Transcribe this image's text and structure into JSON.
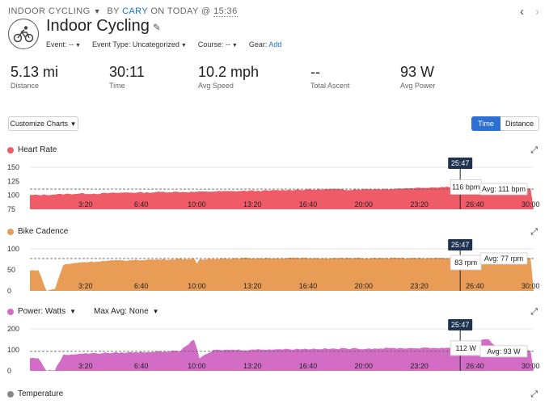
{
  "breadcrumb": {
    "activity_type": "INDOOR CYCLING",
    "by": "BY",
    "author": "CARY",
    "on": "ON TODAY @",
    "time": "15:36"
  },
  "nav": {
    "prev_icon": "chevron-left-icon",
    "next_icon": "chevron-right-icon"
  },
  "activity": {
    "icon": "indoor-cycling-icon",
    "title": "Indoor Cycling",
    "edit_icon": "pencil-icon",
    "event_label": "Event:",
    "event_value": "--",
    "event_type_label": "Event Type:",
    "event_type_value": "Uncategorized",
    "course_label": "Course:",
    "course_value": "--",
    "gear_label": "Gear:",
    "gear_add": "Add"
  },
  "stats": [
    {
      "value": "5.13 mi",
      "label": "Distance"
    },
    {
      "value": "30:11",
      "label": "Time"
    },
    {
      "value": "10.2 mph",
      "label": "Avg Speed"
    },
    {
      "value": "--",
      "label": "Total Ascent"
    },
    {
      "value": "93 W",
      "label": "Avg Power"
    }
  ],
  "controls": {
    "customize_label": "Customize Charts",
    "time_label": "Time",
    "distance_label": "Distance",
    "selected": "Time"
  },
  "x_ticks": [
    "3:20",
    "6:40",
    "10:00",
    "13:20",
    "16:40",
    "20:00",
    "23:20",
    "26:40",
    "30:00"
  ],
  "cursor": {
    "time": "25:47"
  },
  "charts": [
    {
      "key": "heart_rate",
      "label": "Heart Rate",
      "color": "#ef5b66",
      "y_ticks": [
        "150",
        "125",
        "100",
        "75"
      ],
      "ylim": [
        75,
        150
      ],
      "avg_label": "Avg: 111 bpm",
      "cursor_value": "116 bpm"
    },
    {
      "key": "bike_cadence",
      "label": "Bike Cadence",
      "color": "#e89c55",
      "y_ticks": [
        "100",
        "50",
        "0"
      ],
      "ylim": [
        0,
        100
      ],
      "avg_label": "Avg: 77 rpm",
      "cursor_value": "83 rpm"
    },
    {
      "key": "power",
      "label": "Power: Watts",
      "max_avg_label": "Max Avg: None",
      "color": "#d36cc4",
      "y_ticks": [
        "200",
        "100",
        "0"
      ],
      "ylim": [
        0,
        200
      ],
      "avg_label": "Avg: 93 W",
      "cursor_value": "112 W"
    }
  ],
  "temperature": {
    "label": "Temperature",
    "color": "#888888"
  },
  "chart_data": [
    {
      "type": "area",
      "title": "Heart Rate",
      "x": [
        "0:00",
        "1:00",
        "2:00",
        "3:00",
        "4:00",
        "5:00",
        "6:00",
        "7:00",
        "8:00",
        "9:00",
        "10:00",
        "11:00",
        "12:00",
        "13:00",
        "14:00",
        "15:00",
        "16:00",
        "17:00",
        "18:00",
        "19:00",
        "20:00",
        "21:00",
        "22:00",
        "23:00",
        "24:00",
        "25:00",
        "26:00",
        "27:00",
        "28:00",
        "29:00",
        "30:00"
      ],
      "values": [
        100,
        101,
        102,
        103,
        103,
        104,
        105,
        105,
        106,
        106,
        106,
        107,
        107,
        108,
        108,
        109,
        110,
        110,
        111,
        110,
        111,
        111,
        112,
        113,
        114,
        115,
        116,
        117,
        120,
        118,
        112
      ],
      "ylim": [
        75,
        150
      ],
      "average": 111
    },
    {
      "type": "area",
      "title": "Bike Cadence",
      "x": [
        "0:00",
        "0:30",
        "1:00",
        "1:30",
        "2:00",
        "3:00",
        "4:00",
        "5:00",
        "6:00",
        "7:00",
        "8:00",
        "9:00",
        "9:50",
        "10:00",
        "10:10",
        "11:00",
        "12:00",
        "13:00",
        "14:00",
        "15:00",
        "16:00",
        "17:00",
        "18:00",
        "19:00",
        "20:00",
        "21:00",
        "22:00",
        "23:00",
        "24:00",
        "25:00",
        "26:00",
        "27:00",
        "28:00",
        "29:00",
        "29:30",
        "30:00"
      ],
      "values": [
        48,
        50,
        0,
        5,
        62,
        68,
        70,
        72,
        73,
        74,
        75,
        76,
        76,
        64,
        74,
        77,
        77,
        78,
        78,
        78,
        78,
        78,
        78,
        78,
        78,
        78,
        78,
        78,
        78,
        78,
        78,
        80,
        82,
        82,
        78,
        78
      ],
      "ylim": [
        0,
        100
      ],
      "average": 77
    },
    {
      "type": "area",
      "title": "Power: Watts",
      "x": [
        "0:00",
        "0:30",
        "1:00",
        "1:30",
        "2:00",
        "3:00",
        "4:00",
        "5:00",
        "6:00",
        "7:00",
        "8:00",
        "9:00",
        "9:50",
        "10:00",
        "10:10",
        "11:00",
        "12:00",
        "13:00",
        "14:00",
        "15:00",
        "16:00",
        "17:00",
        "18:00",
        "19:00",
        "20:00",
        "21:00",
        "22:00",
        "23:00",
        "24:00",
        "25:00",
        "26:00",
        "27:00",
        "27:30",
        "28:00",
        "29:00",
        "30:00"
      ],
      "values": [
        60,
        62,
        0,
        5,
        75,
        82,
        84,
        86,
        88,
        90,
        92,
        95,
        150,
        110,
        60,
        98,
        100,
        100,
        102,
        103,
        104,
        105,
        105,
        106,
        106,
        107,
        108,
        108,
        109,
        110,
        112,
        148,
        150,
        105,
        100,
        95
      ],
      "ylim": [
        0,
        200
      ],
      "average": 93
    }
  ]
}
